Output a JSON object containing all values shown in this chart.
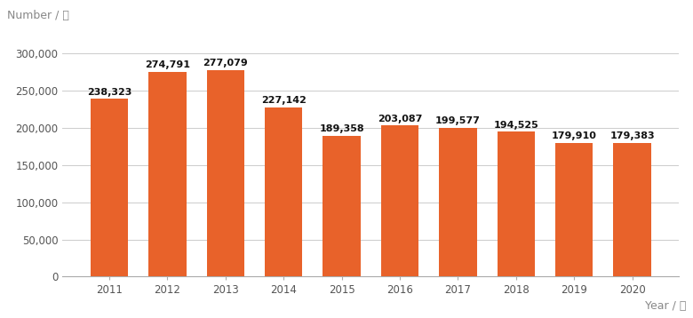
{
  "years": [
    "2011",
    "2012",
    "2013",
    "2014",
    "2015",
    "2016",
    "2017",
    "2018",
    "2019",
    "2020"
  ],
  "values": [
    238323,
    274791,
    277079,
    227142,
    189358,
    203087,
    199577,
    194525,
    179910,
    179383
  ],
  "labels": [
    "238,323",
    "274,791",
    "277,079",
    "227,142",
    "189,358",
    "203,087",
    "199,577",
    "194,525",
    "179,910",
    "179,383"
  ],
  "bar_color": "#E8622A",
  "background_color": "#ffffff",
  "ylabel": "Number / 件",
  "xlabel": "Year / 年",
  "ylim": [
    0,
    320000
  ],
  "yticks": [
    0,
    50000,
    100000,
    150000,
    200000,
    250000,
    300000
  ],
  "label_fontsize": 8,
  "label_fontweight": "bold",
  "axis_label_fontsize": 9,
  "tick_fontsize": 8.5,
  "bar_width": 0.65,
  "grid_color": "#cccccc",
  "label_color": "#111111"
}
